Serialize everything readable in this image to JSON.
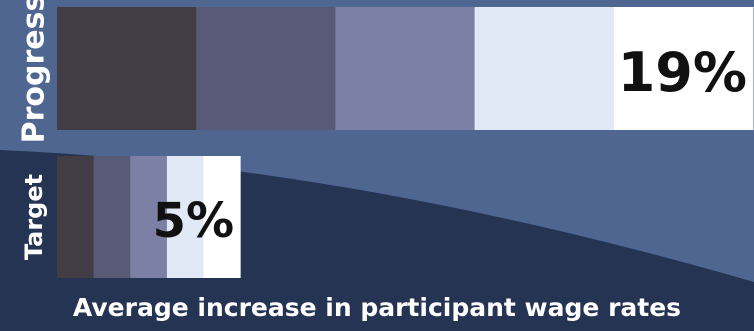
{
  "chart_data": {
    "type": "bar",
    "orientation": "horizontal",
    "categories": [
      "Progress",
      "Target"
    ],
    "values": [
      19,
      5
    ],
    "unit": "%",
    "data_labels": [
      "19%",
      "5%"
    ],
    "xlabel": "Average increase in participant wage rates",
    "axes_visible": false,
    "grid": false,
    "legend": "none"
  },
  "colors": {
    "background_top": "#4e6690",
    "background_bottom": "#263454",
    "label_text": "#ffffff",
    "value_text": "#111111",
    "bar_segments": [
      "#423d45",
      "#585a76",
      "#7b80a4",
      "#e1e8f6",
      "#ffffff"
    ]
  }
}
